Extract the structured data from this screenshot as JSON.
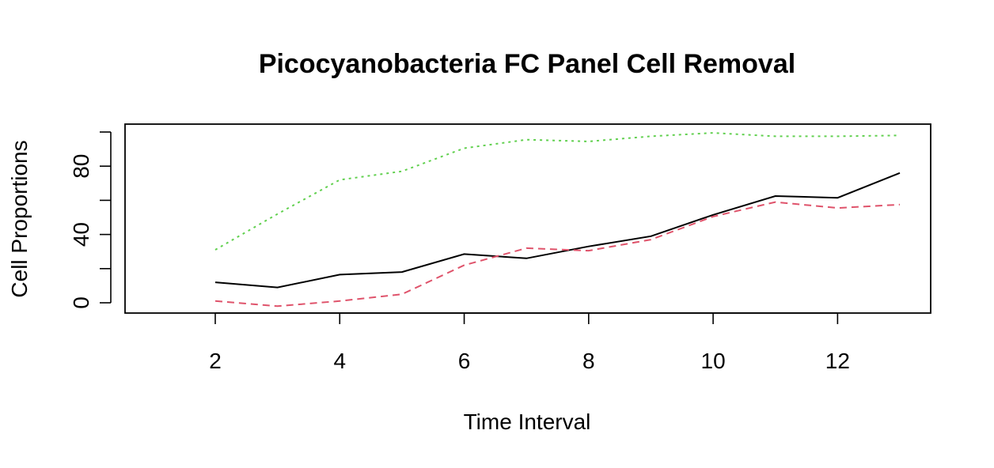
{
  "chart_data": {
    "type": "line",
    "title": "Picocyanobacteria FC Panel Cell Removal",
    "xlabel": "Time Interval",
    "ylabel": "Cell Proportions",
    "xlim": [
      0.5,
      13.5
    ],
    "ylim": [
      -5,
      105
    ],
    "x_ticks": [
      2,
      4,
      6,
      8,
      10,
      12
    ],
    "y_ticks": [
      0,
      40,
      80
    ],
    "y_minor_ticks": [
      0,
      20,
      40,
      60,
      80,
      100
    ],
    "grid": false,
    "legend": "none",
    "x": [
      2,
      3,
      4,
      5,
      6,
      7,
      8,
      9,
      10,
      11,
      12,
      13
    ],
    "series": [
      {
        "color": "#000000",
        "dash": "solid",
        "values": [
          12,
          9,
          16.5,
          18,
          28.5,
          26,
          33,
          39,
          51.5,
          62.5,
          61.5,
          76
        ]
      },
      {
        "color": "#DF536B",
        "dash": "dashed",
        "values": [
          1,
          -2,
          1,
          5,
          22,
          32,
          30.5,
          37,
          50.5,
          59,
          55.5,
          57.5
        ]
      },
      {
        "color": "#61D04F",
        "dash": "dotted",
        "values": [
          31,
          52,
          72,
          77,
          90.5,
          95.5,
          94.5,
          97.5,
          99.5,
          97.5,
          97.5,
          98
        ]
      }
    ]
  }
}
